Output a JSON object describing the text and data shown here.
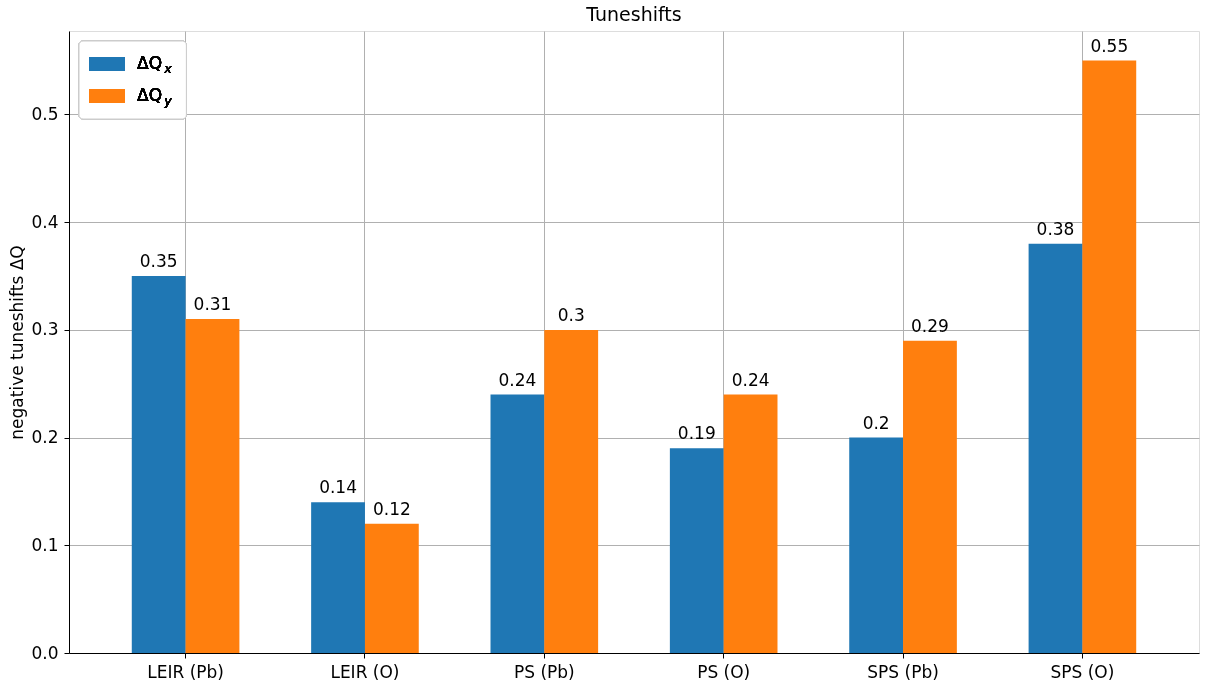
{
  "chart_data": {
    "type": "bar",
    "title": "Tuneshifts",
    "ylabel": "negative tuneshifts ΔQ",
    "categories": [
      "LEIR (Pb)",
      "LEIR (O)",
      "PS (Pb)",
      "PS (O)",
      "SPS (Pb)",
      "SPS (O)"
    ],
    "series": [
      {
        "name": "ΔQ$_{x}$",
        "color": "#1f77b4",
        "values": [
          0.35,
          0.14,
          0.24,
          0.19,
          0.2,
          0.38
        ]
      },
      {
        "name": "ΔQ$_{y}$",
        "color": "#ff7f0e",
        "values": [
          0.31,
          0.12,
          0.3,
          0.24,
          0.29,
          0.55
        ]
      }
    ],
    "ylim": [
      0,
      0.5775
    ],
    "yticks": [
      {
        "value": 0,
        "label": "0.0"
      },
      0.1,
      0.2,
      0.3,
      0.4,
      0.5
    ],
    "data_labels": true,
    "grid": true,
    "legend": "top left"
  }
}
